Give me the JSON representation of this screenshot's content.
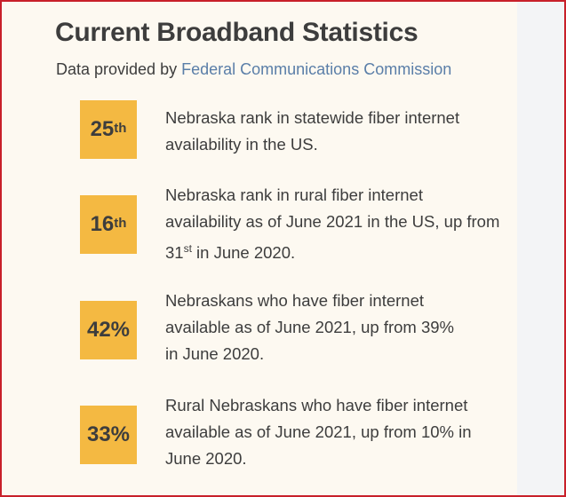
{
  "title": "Current Broadband Statistics",
  "subtitle": {
    "prefix": "Data provided by",
    "link": "Federal Communications Commission"
  },
  "colors": {
    "box": "#f4b942",
    "link": "#5a7ea8",
    "border": "#c8202a"
  },
  "stats": [
    {
      "value": "25",
      "suffix": "th",
      "text": "Nebraska rank in statewide fiber internet availability in the US."
    },
    {
      "value": "16",
      "suffix": "th",
      "text_before": "Nebraska rank in rural fiber internet availability as of June 2021 in the US, up from 31",
      "sup": "st",
      "text_after": " in June 2020."
    },
    {
      "value": "42%",
      "text": "Nebraskans who have fiber internet available as of June 2021, up from 39% in June 2020."
    },
    {
      "value": "33%",
      "text": "Rural Nebraskans who have fiber internet available as of June 2021, up from 10% in June 2020."
    }
  ]
}
